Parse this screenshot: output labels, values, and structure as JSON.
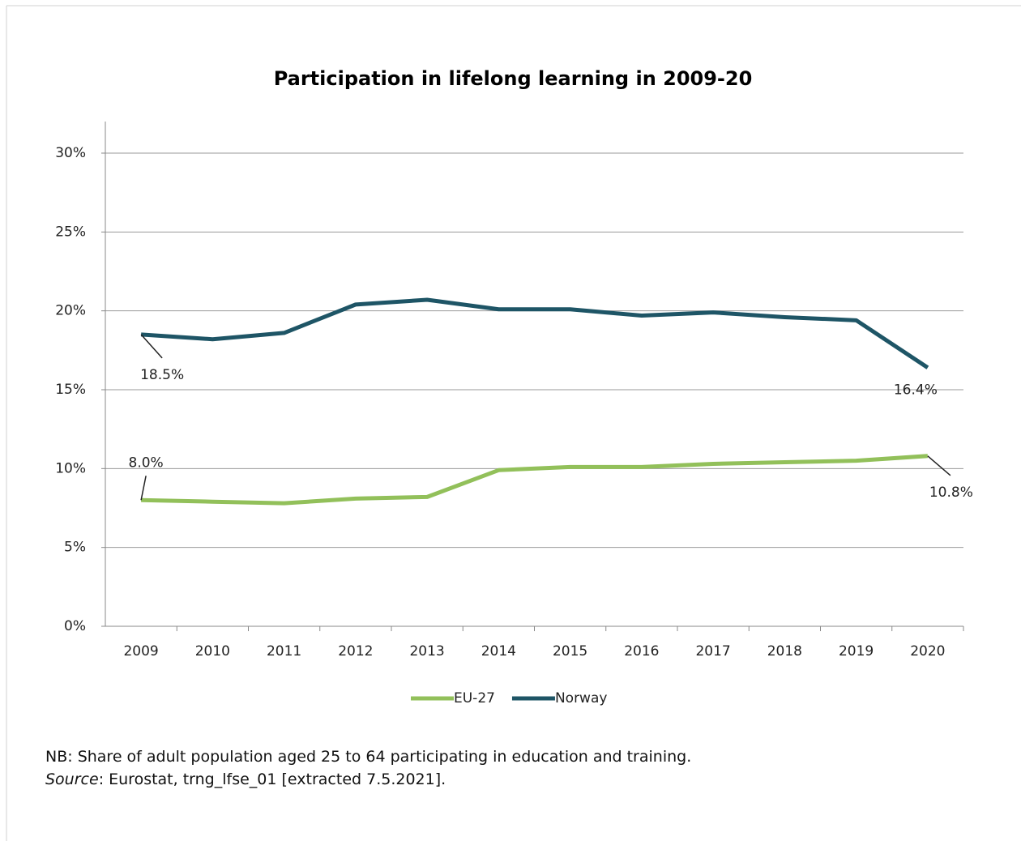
{
  "chart_data": {
    "type": "line",
    "title": "Participation in lifelong learning in 2009-20",
    "categories": [
      "2009",
      "2010",
      "2011",
      "2012",
      "2013",
      "2014",
      "2015",
      "2016",
      "2017",
      "2018",
      "2019",
      "2020"
    ],
    "series": [
      {
        "name": "EU-27",
        "color": "#92c05a",
        "values": [
          8.0,
          7.9,
          7.8,
          8.1,
          8.2,
          9.9,
          10.1,
          10.1,
          10.3,
          10.4,
          10.5,
          10.8
        ],
        "value_labels": [
          "8.0%",
          null,
          null,
          null,
          null,
          null,
          null,
          null,
          null,
          null,
          null,
          "10.8%"
        ]
      },
      {
        "name": "Norway",
        "color": "#1e5566",
        "values": [
          18.5,
          18.2,
          18.6,
          20.4,
          20.7,
          20.1,
          20.1,
          19.7,
          19.9,
          19.6,
          19.4,
          16.4
        ],
        "value_labels": [
          "18.5%",
          null,
          null,
          null,
          null,
          null,
          null,
          null,
          null,
          null,
          null,
          "16.4%"
        ]
      }
    ],
    "ylim": [
      0,
      30
    ],
    "yticks": [
      {
        "value": 0,
        "label": "0%"
      },
      {
        "value": 5,
        "label": "5%"
      },
      {
        "value": 10,
        "label": "10%"
      },
      {
        "value": 15,
        "label": "15%"
      },
      {
        "value": 20,
        "label": "20%"
      },
      {
        "value": 25,
        "label": "25%"
      },
      {
        "value": 30,
        "label": "30%"
      }
    ],
    "grid": true,
    "legend": "bottom"
  },
  "notes": {
    "nb": "NB: Share of adult population aged 25 to 64 participating in education and training.",
    "source_label": "Source",
    "source_text": ": Eurostat, trng_lfse_01 [extracted 7.5.2021]."
  }
}
